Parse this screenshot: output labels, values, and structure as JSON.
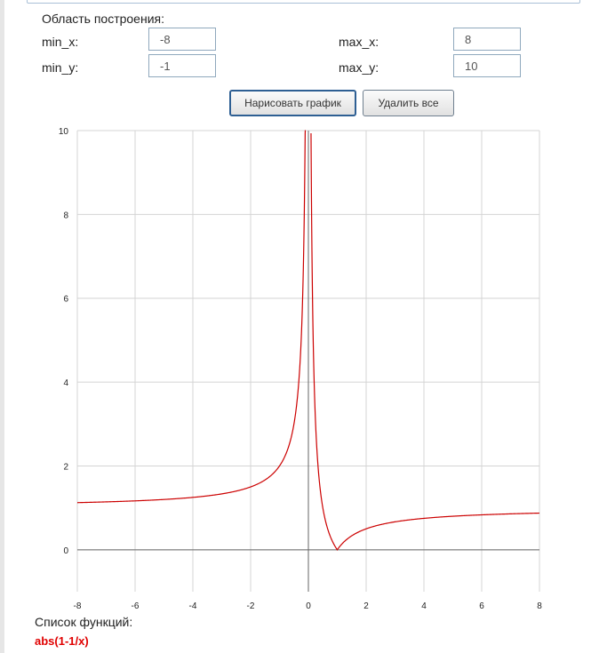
{
  "plot_area": {
    "title": "Область построения:",
    "min_x_label": "min_x:",
    "max_x_label": "max_x:",
    "min_y_label": "min_y:",
    "max_y_label": "max_y:",
    "min_x_value": "-8",
    "max_x_value": "8",
    "min_y_value": "-1",
    "max_y_value": "10"
  },
  "buttons": {
    "draw_label": "Нарисовать график",
    "delete_label": "Удалить все"
  },
  "function_list": {
    "label": "Список функций:",
    "items": [
      {
        "expr": "abs(1-1/x)",
        "color": "#e00000"
      }
    ]
  },
  "chart_data": {
    "type": "line",
    "title": "",
    "xlabel": "",
    "ylabel": "",
    "xlim": [
      -8,
      8
    ],
    "ylim": [
      -1,
      10
    ],
    "grid": true,
    "x_ticks": [
      -8,
      -6,
      -4,
      -2,
      0,
      2,
      4,
      6,
      8
    ],
    "y_ticks": [
      0,
      2,
      4,
      6,
      8,
      10
    ],
    "series": [
      {
        "function": "abs(1-1/x)",
        "color": "#cc0000",
        "x": [
          -8,
          -6,
          -4,
          -3,
          -2,
          -1.5,
          -1,
          -0.5,
          -0.3,
          -0.2,
          -0.11,
          0.091,
          0.12,
          0.2,
          0.3,
          0.5,
          0.7,
          0.9,
          1,
          1.2,
          1.5,
          2,
          3,
          4,
          6,
          8
        ],
        "y": [
          1.125,
          1.167,
          1.25,
          1.333,
          1.5,
          1.667,
          2,
          3,
          4.333,
          6,
          10.09,
          9.99,
          7.333,
          4,
          2.333,
          1,
          0.429,
          0.111,
          0,
          0.167,
          0.333,
          0.5,
          0.667,
          0.75,
          0.833,
          0.875
        ]
      }
    ]
  }
}
